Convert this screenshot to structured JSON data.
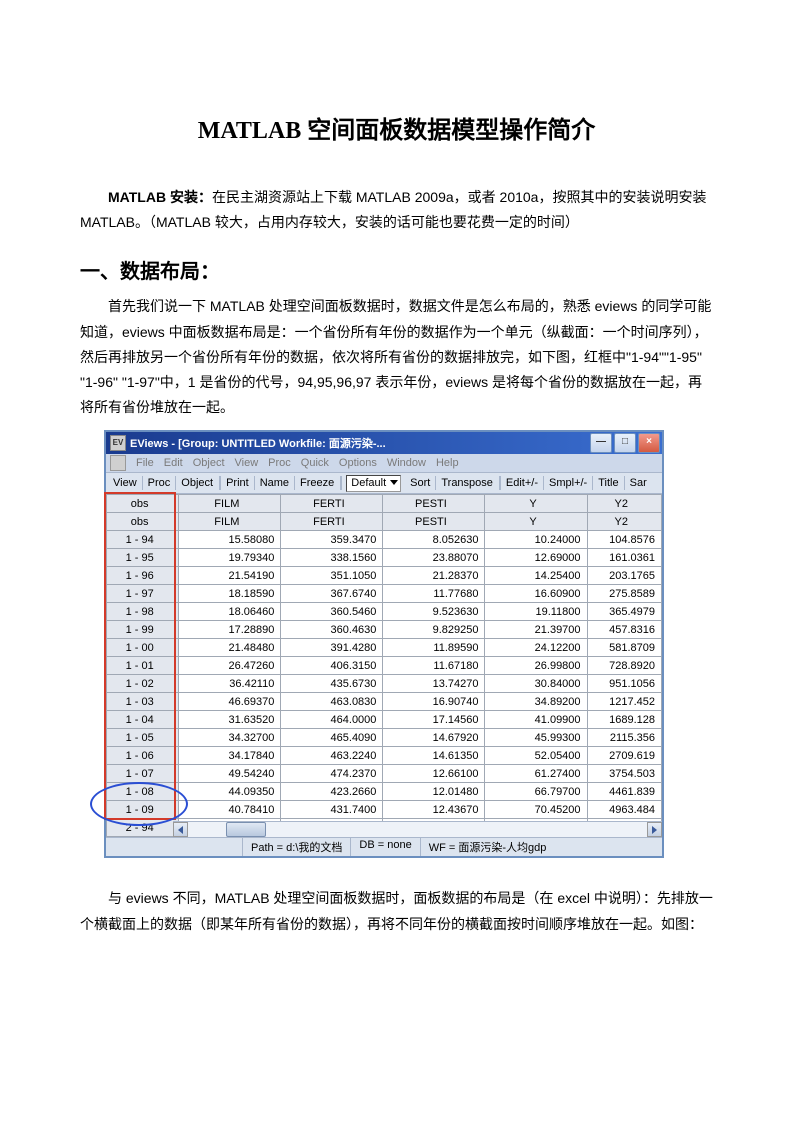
{
  "doc": {
    "title": "MATLAB 空间面板数据模型操作简介",
    "install_label": "MATLAB 安装：",
    "install_text": "在民主湖资源站上下载 MATLAB 2009a，或者 2010a，按照其中的安装说明安装 MATLAB。（MATLAB 较大，占用内存较大，安装的话可能也要花费一定的时间）",
    "section1_heading": "一、数据布局：",
    "section1_p1": "首先我们说一下 MATLAB 处理空间面板数据时，数据文件是怎么布局的，熟悉 eviews 的同学可能知道，eviews 中面板数据布局是：一个省份所有年份的数据作为一个单元（纵截面：一个时间序列），然后再排放另一个省份所有年份的数据，依次将所有省份的数据排放完，如下图，红框中\"1-94\"\"1-95\" \"1-96\" \"1-97\"中，1 是省份的代号，94,95,96,97 表示年份，eviews 是将每个省份的数据放在一起，再将所有省份堆放在一起。",
    "section1_p2": "与 eviews 不同，MATLAB 处理空间面板数据时，面板数据的布局是（在 excel 中说明）：先排放一个横截面上的数据（即某年所有省份的数据），再将不同年份的横截面按时间顺序堆放在一起。如图："
  },
  "eviews": {
    "titlebar": "EViews - [Group: UNTITLED   Workfile: 面源污染-...",
    "titlebar_icon": "EV",
    "btn_min": "—",
    "btn_max": "□",
    "btn_close": "×",
    "menu": {
      "file": "File",
      "edit": "Edit",
      "object": "Object",
      "view": "View",
      "proc": "Proc",
      "quick": "Quick",
      "options": "Options",
      "window": "Window",
      "help": "Help"
    },
    "toolbar": {
      "view": "View",
      "proc": "Proc",
      "object": "Object",
      "print": "Print",
      "name": "Name",
      "freeze": "Freeze",
      "default": "Default",
      "sort": "Sort",
      "transpose": "Transpose",
      "edit": "Edit+/-",
      "smpl": "Smpl+/-",
      "title": "Title",
      "sar": "Sar"
    },
    "columns": [
      "obs",
      "FILM",
      "FERTI",
      "PESTI",
      "Y",
      "Y2"
    ],
    "secondHeader": [
      "obs",
      "FILM",
      "FERTI",
      "PESTI",
      "Y",
      "Y2"
    ],
    "rows": [
      {
        "obs": "1 - 94",
        "c": [
          "15.58080",
          "359.3470",
          "8.052630",
          "10.24000",
          "104.8576"
        ]
      },
      {
        "obs": "1 - 95",
        "c": [
          "19.79340",
          "338.1560",
          "23.88070",
          "12.69000",
          "161.0361"
        ]
      },
      {
        "obs": "1 - 96",
        "c": [
          "21.54190",
          "351.1050",
          "21.28370",
          "14.25400",
          "203.1765"
        ]
      },
      {
        "obs": "1 - 97",
        "c": [
          "18.18590",
          "367.6740",
          "11.77680",
          "16.60900",
          "275.8589"
        ]
      },
      {
        "obs": "1 - 98",
        "c": [
          "18.06460",
          "360.5460",
          "9.523630",
          "19.11800",
          "365.4979"
        ]
      },
      {
        "obs": "1 - 99",
        "c": [
          "17.28890",
          "360.4630",
          "9.829250",
          "21.39700",
          "457.8316"
        ]
      },
      {
        "obs": "1 - 00",
        "c": [
          "21.48480",
          "391.4280",
          "11.89590",
          "24.12200",
          "581.8709"
        ]
      },
      {
        "obs": "1 - 01",
        "c": [
          "26.47260",
          "406.3150",
          "11.67180",
          "26.99800",
          "728.8920"
        ]
      },
      {
        "obs": "1 - 02",
        "c": [
          "36.42110",
          "435.6730",
          "13.74270",
          "30.84000",
          "951.1056"
        ]
      },
      {
        "obs": "1 - 03",
        "c": [
          "46.69370",
          "463.0830",
          "16.90740",
          "34.89200",
          "1217.452"
        ]
      },
      {
        "obs": "1 - 04",
        "c": [
          "31.63520",
          "464.0000",
          "17.14560",
          "41.09900",
          "1689.128"
        ]
      },
      {
        "obs": "1 - 05",
        "c": [
          "34.32700",
          "465.4090",
          "14.67920",
          "45.99300",
          "2115.356"
        ]
      },
      {
        "obs": "1 - 06",
        "c": [
          "34.17840",
          "463.2240",
          "14.61350",
          "52.05400",
          "2709.619"
        ]
      },
      {
        "obs": "1 - 07",
        "c": [
          "49.54240",
          "474.2370",
          "12.66100",
          "61.27400",
          "3754.503"
        ]
      },
      {
        "obs": "1 - 08",
        "c": [
          "44.09350",
          "423.2660",
          "12.01480",
          "66.79700",
          "4461.839"
        ]
      },
      {
        "obs": "1 - 09",
        "c": [
          "40.78410",
          "431.7400",
          "12.43670",
          "70.45200",
          "4963.484"
        ]
      },
      {
        "obs": "2 - 94",
        "c": [
          "",
          "",
          "",
          "",
          ""
        ]
      }
    ],
    "status": {
      "path": "Path = d:\\我的文档",
      "db": "DB = none",
      "wf": "WF = 面源污染-人均gdp"
    },
    "styles": {
      "titlebar_bg_from": "#1a3b8f",
      "titlebar_bg_to": "#3a6ed0",
      "header_bg": "#e3e7ee",
      "toolbar_bg": "#dce4ef",
      "border_color": "#a0a8b4",
      "red_box_color": "#d33a2a",
      "blue_ellipse_color": "#2a4ed3"
    }
  }
}
